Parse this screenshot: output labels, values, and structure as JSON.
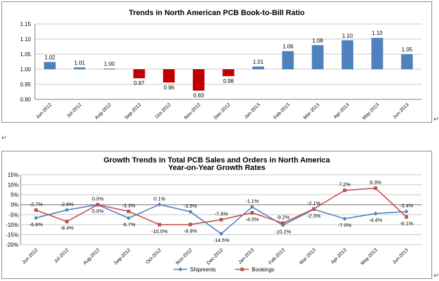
{
  "chart_data": [
    {
      "type": "bar",
      "title": "Trends in North American PCB Book-to-Bill Ratio",
      "categories": [
        "Jun-2012",
        "Jul-2012",
        "Aug-2012",
        "Sep-2012",
        "Oct-2012",
        "Nov-2012",
        "Dec-2012",
        "Jan-2013",
        "Feb-2013",
        "Mar-2013",
        "Apr-2013",
        "May-2013",
        "Jun-2013"
      ],
      "values": [
        1.024,
        1.006,
        1.002,
        0.97,
        0.956,
        0.929,
        0.977,
        1.009,
        1.06,
        1.08,
        1.096,
        1.104,
        1.05
      ],
      "value_labels": [
        "1.02",
        "1.01",
        "1.00",
        "0.97",
        "0.96",
        "0.93",
        "0.98",
        "1.01",
        "1.06",
        "1.08",
        "1.10",
        "1.10",
        "1.05"
      ],
      "baseline": 1.0,
      "ylim": [
        0.9,
        1.15
      ],
      "yticks": [
        "0.90",
        "0.95",
        "1.00",
        "1.05",
        "1.10",
        "1.15"
      ],
      "colors": {
        "positive": "#4f81bd",
        "negative": "#c00000"
      },
      "grid": true
    },
    {
      "type": "line",
      "title": "Growth Trends in Total PCB Sales and Orders in North America",
      "subtitle": "Year-on-Year Growth Rates",
      "categories": [
        "Jun-2012",
        "Jul-2012",
        "Aug-2012",
        "Sep-2012",
        "Oct-2012",
        "Nov-2012",
        "Dec-2012",
        "Jan-2013",
        "Feb-2013",
        "Mar-2013",
        "Apr-2013",
        "May-2013",
        "Jun-2013"
      ],
      "series": [
        {
          "name": "Shipments",
          "color": "#4f81bd",
          "marker": "diamond",
          "values": [
            -6.6,
            -2.6,
            0.0,
            -6.7,
            0.1,
            -3.5,
            -14.5,
            -1.1,
            -10.2,
            -2.3,
            -7.0,
            -4.4,
            -3.4
          ],
          "labels": [
            "-6.6%",
            "-2.6%",
            "0.0%",
            "-6.7%",
            "0.1%",
            "-3.5%",
            "-14.5%",
            "-1.1%",
            "-10.2%",
            "-2.3%",
            "-7.0%",
            "-4.4%",
            "-3.4%"
          ]
        },
        {
          "name": "Bookings",
          "color": "#c0504d",
          "marker": "square",
          "values": [
            -2.7,
            -8.4,
            0.0,
            -3.3,
            -10.0,
            -9.9,
            -7.5,
            -4.0,
            -9.2,
            -2.1,
            7.2,
            8.3,
            -6.1
          ],
          "labels": [
            "-2.7%",
            "-8.4%",
            "0.0%",
            "-3.3%",
            "-10.0%",
            "-9.9%",
            "-7.5%",
            "-4.0%",
            "-9.2%",
            "-2.1%",
            "7.2%",
            "8.3%",
            "-6.1%"
          ]
        }
      ],
      "ylim": [
        -20,
        15
      ],
      "yticks": [
        "15%",
        "10%",
        "5%",
        "0%",
        "-5%",
        "-10%",
        "-15%",
        "-20%"
      ],
      "legend_position": "bottom",
      "grid": true
    }
  ],
  "paragraph_mark": "↵"
}
